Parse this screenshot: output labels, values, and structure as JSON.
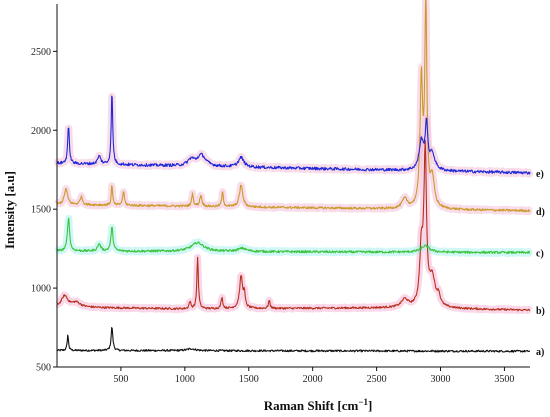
{
  "chart_data": {
    "type": "line",
    "title": "",
    "xlabel": "Raman Shift [cm",
    "xlabel_superscript": "−1",
    "xlabel_close": "]",
    "ylabel": "Intensity [a.u]",
    "xlim": [
      0,
      3700
    ],
    "ylim": [
      500,
      2800
    ],
    "x_ticks": [
      500,
      1000,
      1500,
      2000,
      2500,
      3000,
      3500
    ],
    "y_ticks": [
      500,
      1000,
      1500,
      2000,
      2500
    ],
    "grid": false,
    "legend": "right-side labels",
    "series": [
      {
        "label": "a)",
        "color": "#111111",
        "shade": "",
        "baseline": [
          [
            0,
            605
          ],
          [
            3700,
            600
          ]
        ],
        "noise": 6,
        "peaks": [
          [
            85,
            100,
            6
          ],
          [
            430,
            150,
            8
          ],
          [
            1050,
            12,
            40
          ]
        ]
      },
      {
        "label": "b)",
        "color": "#b5301c",
        "shade": "#f5b7d5",
        "baseline": [
          [
            0,
            880
          ],
          [
            1000,
            868
          ],
          [
            2700,
            875
          ],
          [
            3700,
            860
          ]
        ],
        "noise": 6,
        "peaks": [
          [
            60,
            70,
            30
          ],
          [
            150,
            30,
            40
          ],
          [
            1040,
            45,
            8
          ],
          [
            1100,
            330,
            7
          ],
          [
            1290,
            70,
            8
          ],
          [
            1440,
            205,
            14
          ],
          [
            1465,
            80,
            8
          ],
          [
            1660,
            50,
            8
          ],
          [
            2720,
            50,
            30
          ],
          [
            2850,
            350,
            15
          ],
          [
            2880,
            950,
            12
          ],
          [
            2935,
            180,
            28
          ],
          [
            2985,
            60,
            15
          ]
        ]
      },
      {
        "label": "c)",
        "color": "#3cc43c",
        "shade": "#aaf0ee",
        "baseline": [
          [
            0,
            1235
          ],
          [
            3700,
            1225
          ]
        ],
        "noise": 7,
        "peaks": [
          [
            90,
            210,
            10
          ],
          [
            330,
            45,
            15
          ],
          [
            430,
            150,
            10
          ],
          [
            1100,
            55,
            60
          ],
          [
            1450,
            20,
            40
          ],
          [
            2880,
            40,
            40
          ]
        ]
      },
      {
        "label": "d)",
        "color": "#cc9a2a",
        "shade": "#f3c0d8",
        "baseline": [
          [
            0,
            1530
          ],
          [
            3700,
            1490
          ]
        ],
        "noise": 7,
        "peaks": [
          [
            70,
            100,
            15
          ],
          [
            190,
            50,
            12
          ],
          [
            430,
            130,
            6
          ],
          [
            520,
            90,
            8
          ],
          [
            1060,
            80,
            8
          ],
          [
            1125,
            70,
            10
          ],
          [
            1295,
            90,
            8
          ],
          [
            1440,
            140,
            15
          ],
          [
            2720,
            60,
            25
          ],
          [
            2850,
            800,
            12
          ],
          [
            2885,
            1280,
            10
          ],
          [
            2935,
            180,
            20
          ]
        ]
      },
      {
        "label": "e)",
        "color": "#1f28d8",
        "shade": "#f3c0d8",
        "baseline": [
          [
            0,
            1790
          ],
          [
            3700,
            1730
          ]
        ],
        "noise": 9,
        "peaks": [
          [
            90,
            230,
            8
          ],
          [
            330,
            50,
            15
          ],
          [
            430,
            460,
            7
          ],
          [
            1050,
            40,
            30
          ],
          [
            1130,
            70,
            40
          ],
          [
            1440,
            60,
            25
          ],
          [
            2850,
            180,
            20
          ],
          [
            2890,
            280,
            12
          ],
          [
            2935,
            100,
            25
          ]
        ]
      }
    ]
  }
}
